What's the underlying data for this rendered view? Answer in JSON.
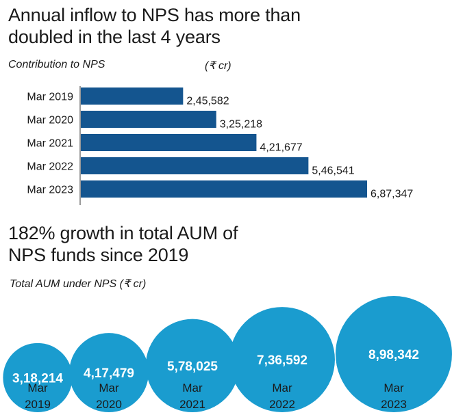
{
  "section1": {
    "title": "Annual inflow to NPS has more than doubled in the last 4 years",
    "subtitle": "Contribution to NPS",
    "unit": "(₹ cr)"
  },
  "section2": {
    "title": "182% growth in total AUM of NPS funds since 2019",
    "subtitle": "Total AUM under NPS (₹ cr)"
  },
  "colors": {
    "bar": "#14558f",
    "bubble": "#1a9ccf"
  },
  "chart_data": [
    {
      "type": "bar",
      "orientation": "horizontal",
      "title": "Annual inflow to NPS has more than doubled in the last 4 years",
      "subtitle": "Contribution to NPS",
      "unit": "(₹ cr)",
      "categories": [
        "Mar 2019",
        "Mar 2020",
        "Mar 2021",
        "Mar 2022",
        "Mar 2023"
      ],
      "values": [
        245582,
        325218,
        421677,
        546541,
        687347
      ],
      "value_labels": [
        "2,45,582",
        "3,25,218",
        "4,21,677",
        "5,46,541",
        "6,87,347"
      ]
    },
    {
      "type": "bubble",
      "title": "182% growth in total AUM of NPS funds since 2019",
      "subtitle": "Total AUM under NPS (₹ cr)",
      "categories": [
        [
          "Mar",
          "2019"
        ],
        [
          "Mar",
          "2020"
        ],
        [
          "Mar",
          "2021"
        ],
        [
          "Mar",
          "2022"
        ],
        [
          "Mar",
          "2023"
        ]
      ],
      "values": [
        318214,
        417479,
        578025,
        736592,
        898342
      ],
      "value_labels": [
        "3,18,214",
        "4,17,479",
        "5,78,025",
        "7,36,592",
        "8,98,342"
      ]
    }
  ]
}
